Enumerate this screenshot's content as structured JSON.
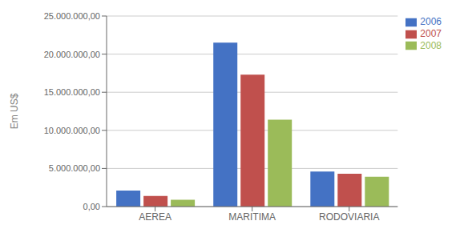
{
  "chart_data": {
    "type": "bar",
    "categories": [
      "AEREA",
      "MARITIMA",
      "RODOVIARIA"
    ],
    "series": [
      {
        "name": "2006",
        "color": "#4472C4",
        "values": [
          2100000,
          21500000,
          4600000
        ]
      },
      {
        "name": "2007",
        "color": "#C0504D",
        "values": [
          1400000,
          17300000,
          4300000
        ]
      },
      {
        "name": "2008",
        "color": "#9BBB59",
        "values": [
          900000,
          11400000,
          3900000
        ]
      }
    ],
    "ylabel": "Em US$",
    "ylim": [
      0,
      25000000
    ],
    "yticks": [
      {
        "value": 0,
        "label": "0,00"
      },
      {
        "value": 5000000,
        "label": "5.000.000,00"
      },
      {
        "value": 10000000,
        "label": "10.000.000,00"
      },
      {
        "value": 15000000,
        "label": "15.000.000,00"
      },
      {
        "value": 20000000,
        "label": "20.000.000,00"
      },
      {
        "value": 25000000,
        "label": "25.000.000,00"
      }
    ],
    "grid": true,
    "legend": "upper right"
  }
}
